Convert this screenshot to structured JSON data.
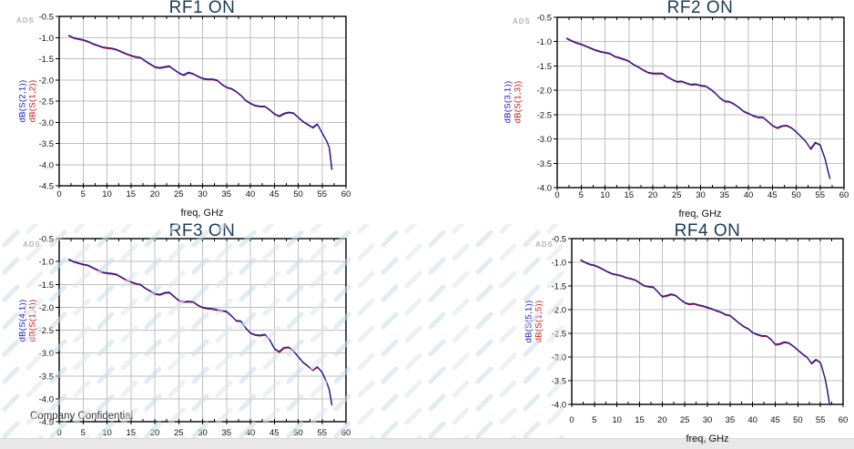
{
  "page": {
    "ads_label": "ADS",
    "confidential_text": "Company Confidential",
    "freq_axis_label": "freq, GHz",
    "colors": {
      "background": "#ffffff",
      "title": "#1b3a55",
      "grid": "#bfbfbf",
      "axis": "#000000",
      "trace_primary": "#1e1e9c",
      "trace_secondary": "#c81616",
      "legend_blue": "#1414cc",
      "legend_red": "#cc1414",
      "ads_watermark": "#b4b4b4",
      "bottom_bar": "#e8e8e8",
      "watermark_dash_blue": "#c8dcea",
      "watermark_dash_gray": "#dde5ec"
    }
  },
  "chart_data": [
    {
      "type": "line",
      "title": "RF1 ON",
      "xlabel": "freq, GHz",
      "xlim": [
        0,
        60
      ],
      "xstep": 5,
      "ylim": [
        -4.5,
        -0.5
      ],
      "ystep": 0.5,
      "grid": true,
      "legend_position": "left-rotated",
      "x": [
        2,
        3,
        4,
        5,
        6,
        7,
        8,
        9,
        10,
        11,
        12,
        13,
        14,
        15,
        16,
        17,
        18,
        19,
        20,
        21,
        22,
        23,
        24,
        25,
        26,
        27,
        28,
        29,
        30,
        31,
        32,
        33,
        34,
        35,
        36,
        37,
        38,
        39,
        40,
        41,
        42,
        43,
        44,
        45,
        46,
        47,
        48,
        49,
        50,
        51,
        52,
        53,
        54,
        55,
        56,
        56.5,
        57
      ],
      "series": [
        {
          "name": "dB(S(2,1))",
          "color": "#1e1e9c",
          "y": [
            -0.95,
            -1.0,
            -1.03,
            -1.05,
            -1.09,
            -1.14,
            -1.18,
            -1.22,
            -1.24,
            -1.25,
            -1.28,
            -1.33,
            -1.38,
            -1.42,
            -1.45,
            -1.47,
            -1.55,
            -1.62,
            -1.69,
            -1.71,
            -1.69,
            -1.67,
            -1.75,
            -1.83,
            -1.88,
            -1.82,
            -1.85,
            -1.91,
            -1.96,
            -1.98,
            -1.98,
            -2.0,
            -2.1,
            -2.17,
            -2.2,
            -2.27,
            -2.36,
            -2.48,
            -2.55,
            -2.6,
            -2.62,
            -2.62,
            -2.7,
            -2.8,
            -2.85,
            -2.79,
            -2.76,
            -2.78,
            -2.88,
            -2.98,
            -3.05,
            -3.12,
            -3.04,
            -3.25,
            -3.45,
            -3.6,
            -4.1
          ]
        },
        {
          "name": "dB(S(1,2))",
          "color": "#c81616",
          "y": [
            -0.95,
            -1.0,
            -1.03,
            -1.05,
            -1.09,
            -1.14,
            -1.18,
            -1.22,
            -1.24,
            -1.25,
            -1.28,
            -1.33,
            -1.38,
            -1.42,
            -1.45,
            -1.47,
            -1.55,
            -1.62,
            -1.69,
            -1.71,
            -1.69,
            -1.67,
            -1.75,
            -1.83,
            -1.88,
            -1.82,
            -1.85,
            -1.91,
            -1.96,
            -1.98,
            -1.98,
            -2.0,
            -2.1,
            -2.17,
            -2.2,
            -2.27,
            -2.36,
            -2.48,
            -2.55,
            -2.6,
            -2.62,
            -2.62,
            -2.7,
            -2.8,
            -2.85,
            -2.79,
            -2.76,
            -2.78,
            -2.88,
            -2.98,
            -3.05,
            -3.12,
            -3.04,
            -3.25,
            -3.45,
            -3.6,
            -4.1
          ]
        }
      ]
    },
    {
      "type": "line",
      "title": "RF2 ON",
      "xlabel": "freq, GHz",
      "xlim": [
        0,
        60
      ],
      "xstep": 5,
      "ylim": [
        -4.0,
        -0.5
      ],
      "ystep": 0.5,
      "grid": true,
      "legend_position": "left-rotated",
      "x": [
        2,
        3,
        4,
        5,
        6,
        7,
        8,
        9,
        10,
        11,
        12,
        13,
        14,
        15,
        16,
        17,
        18,
        19,
        20,
        21,
        22,
        23,
        24,
        25,
        26,
        27,
        28,
        29,
        30,
        31,
        32,
        33,
        34,
        35,
        36,
        37,
        38,
        39,
        40,
        41,
        42,
        43,
        44,
        45,
        46,
        47,
        48,
        49,
        50,
        51,
        52,
        53,
        54,
        55,
        56,
        56.5,
        57
      ],
      "series": [
        {
          "name": "dB(S(3,1))",
          "color": "#1e1e9c",
          "y": [
            -0.93,
            -0.98,
            -1.02,
            -1.05,
            -1.09,
            -1.13,
            -1.17,
            -1.2,
            -1.22,
            -1.24,
            -1.3,
            -1.33,
            -1.36,
            -1.4,
            -1.47,
            -1.52,
            -1.58,
            -1.63,
            -1.65,
            -1.65,
            -1.65,
            -1.72,
            -1.77,
            -1.82,
            -1.81,
            -1.85,
            -1.88,
            -1.87,
            -1.9,
            -1.91,
            -1.97,
            -2.05,
            -2.15,
            -2.22,
            -2.23,
            -2.28,
            -2.35,
            -2.43,
            -2.47,
            -2.52,
            -2.55,
            -2.55,
            -2.63,
            -2.72,
            -2.77,
            -2.73,
            -2.72,
            -2.77,
            -2.85,
            -2.95,
            -3.05,
            -3.2,
            -3.07,
            -3.12,
            -3.4,
            -3.6,
            -3.8
          ]
        },
        {
          "name": "dB(S(1,3))",
          "color": "#c81616",
          "y": [
            -0.93,
            -0.98,
            -1.02,
            -1.05,
            -1.09,
            -1.13,
            -1.17,
            -1.2,
            -1.22,
            -1.24,
            -1.3,
            -1.33,
            -1.36,
            -1.4,
            -1.47,
            -1.52,
            -1.58,
            -1.63,
            -1.65,
            -1.65,
            -1.65,
            -1.72,
            -1.77,
            -1.82,
            -1.81,
            -1.85,
            -1.88,
            -1.87,
            -1.9,
            -1.91,
            -1.97,
            -2.05,
            -2.15,
            -2.22,
            -2.23,
            -2.28,
            -2.35,
            -2.43,
            -2.47,
            -2.52,
            -2.55,
            -2.55,
            -2.63,
            -2.72,
            -2.77,
            -2.73,
            -2.72,
            -2.77,
            -2.85,
            -2.95,
            -3.05,
            -3.2,
            -3.07,
            -3.12,
            -3.4,
            -3.6,
            -3.8
          ]
        }
      ]
    },
    {
      "type": "line",
      "title": "RF3 ON",
      "xlabel": "",
      "xlim": [
        0,
        60
      ],
      "xstep": 5,
      "ylim": [
        -4.5,
        -0.5
      ],
      "ystep": 0.5,
      "grid": true,
      "legend_position": "left-rotated",
      "x": [
        2,
        3,
        4,
        5,
        6,
        7,
        8,
        9,
        10,
        11,
        12,
        13,
        14,
        15,
        16,
        17,
        18,
        19,
        20,
        21,
        22,
        23,
        24,
        25,
        26,
        27,
        28,
        29,
        30,
        31,
        32,
        33,
        34,
        35,
        36,
        37,
        38,
        39,
        40,
        41,
        42,
        43,
        44,
        45,
        46,
        47,
        48,
        49,
        50,
        51,
        52,
        53,
        54,
        55,
        56,
        56.5,
        57
      ],
      "series": [
        {
          "name": "dB(S(4,1))",
          "color": "#1e1e9c",
          "y": [
            -0.95,
            -1.0,
            -1.03,
            -1.06,
            -1.08,
            -1.13,
            -1.18,
            -1.23,
            -1.25,
            -1.26,
            -1.28,
            -1.34,
            -1.4,
            -1.44,
            -1.48,
            -1.5,
            -1.58,
            -1.64,
            -1.7,
            -1.72,
            -1.68,
            -1.67,
            -1.76,
            -1.85,
            -1.88,
            -1.87,
            -1.88,
            -1.95,
            -2.0,
            -2.02,
            -2.03,
            -2.05,
            -2.07,
            -2.09,
            -2.18,
            -2.29,
            -2.3,
            -2.45,
            -2.56,
            -2.6,
            -2.61,
            -2.59,
            -2.7,
            -2.9,
            -2.97,
            -2.88,
            -2.87,
            -2.95,
            -3.08,
            -3.2,
            -3.28,
            -3.37,
            -3.3,
            -3.42,
            -3.65,
            -3.8,
            -4.12
          ]
        },
        {
          "name": "dB(S(1,4))",
          "color": "#c81616",
          "y": [
            -0.95,
            -1.0,
            -1.03,
            -1.06,
            -1.08,
            -1.13,
            -1.18,
            -1.23,
            -1.25,
            -1.26,
            -1.28,
            -1.34,
            -1.4,
            -1.44,
            -1.48,
            -1.5,
            -1.58,
            -1.64,
            -1.7,
            -1.72,
            -1.68,
            -1.67,
            -1.76,
            -1.85,
            -1.88,
            -1.87,
            -1.88,
            -1.95,
            -2.0,
            -2.02,
            -2.03,
            -2.05,
            -2.07,
            -2.09,
            -2.18,
            -2.29,
            -2.3,
            -2.45,
            -2.56,
            -2.6,
            -2.61,
            -2.59,
            -2.7,
            -2.9,
            -2.97,
            -2.88,
            -2.87,
            -2.95,
            -3.08,
            -3.2,
            -3.28,
            -3.37,
            -3.3,
            -3.42,
            -3.65,
            -3.8,
            -4.12
          ]
        }
      ]
    },
    {
      "type": "line",
      "title": "RF4 ON",
      "xlabel": "freq, GHz",
      "xlim": [
        0,
        60
      ],
      "xstep": 5,
      "ylim": [
        -4.0,
        -0.5
      ],
      "ystep": 0.5,
      "grid": true,
      "legend_position": "left-rotated",
      "x": [
        2,
        3,
        4,
        5,
        6,
        7,
        8,
        9,
        10,
        11,
        12,
        13,
        14,
        15,
        16,
        17,
        18,
        19,
        20,
        21,
        22,
        23,
        24,
        25,
        26,
        27,
        28,
        29,
        30,
        31,
        32,
        33,
        34,
        35,
        36,
        37,
        38,
        39,
        40,
        41,
        42,
        43,
        44,
        45,
        46,
        47,
        48,
        49,
        50,
        51,
        52,
        53,
        54,
        55,
        56,
        56.5,
        57
      ],
      "series": [
        {
          "name": "dB(S(5,1))",
          "color": "#1e1e9c",
          "y": [
            -0.95,
            -1.0,
            -1.04,
            -1.06,
            -1.1,
            -1.15,
            -1.2,
            -1.24,
            -1.26,
            -1.28,
            -1.32,
            -1.34,
            -1.37,
            -1.43,
            -1.49,
            -1.51,
            -1.52,
            -1.62,
            -1.72,
            -1.7,
            -1.67,
            -1.7,
            -1.78,
            -1.85,
            -1.88,
            -1.87,
            -1.9,
            -1.92,
            -1.95,
            -1.98,
            -2.02,
            -2.05,
            -2.1,
            -2.12,
            -2.2,
            -2.28,
            -2.35,
            -2.4,
            -2.48,
            -2.52,
            -2.55,
            -2.55,
            -2.62,
            -2.73,
            -2.72,
            -2.68,
            -2.7,
            -2.77,
            -2.85,
            -2.93,
            -3.0,
            -3.13,
            -3.05,
            -3.12,
            -3.45,
            -3.7,
            -4.0
          ]
        },
        {
          "name": "dB(S(1,5))",
          "color": "#c81616",
          "y": [
            -0.95,
            -1.0,
            -1.04,
            -1.06,
            -1.1,
            -1.15,
            -1.2,
            -1.24,
            -1.26,
            -1.28,
            -1.32,
            -1.34,
            -1.37,
            -1.43,
            -1.49,
            -1.51,
            -1.52,
            -1.62,
            -1.72,
            -1.7,
            -1.67,
            -1.7,
            -1.78,
            -1.85,
            -1.88,
            -1.87,
            -1.9,
            -1.92,
            -1.95,
            -1.98,
            -2.02,
            -2.05,
            -2.1,
            -2.12,
            -2.2,
            -2.28,
            -2.35,
            -2.4,
            -2.48,
            -2.52,
            -2.55,
            -2.55,
            -2.62,
            -2.73,
            -2.72,
            -2.68,
            -2.7,
            -2.77,
            -2.85,
            -2.93,
            -3.0,
            -3.13,
            -3.05,
            -3.12,
            -3.45,
            -3.7,
            -4.0
          ]
        }
      ]
    }
  ]
}
